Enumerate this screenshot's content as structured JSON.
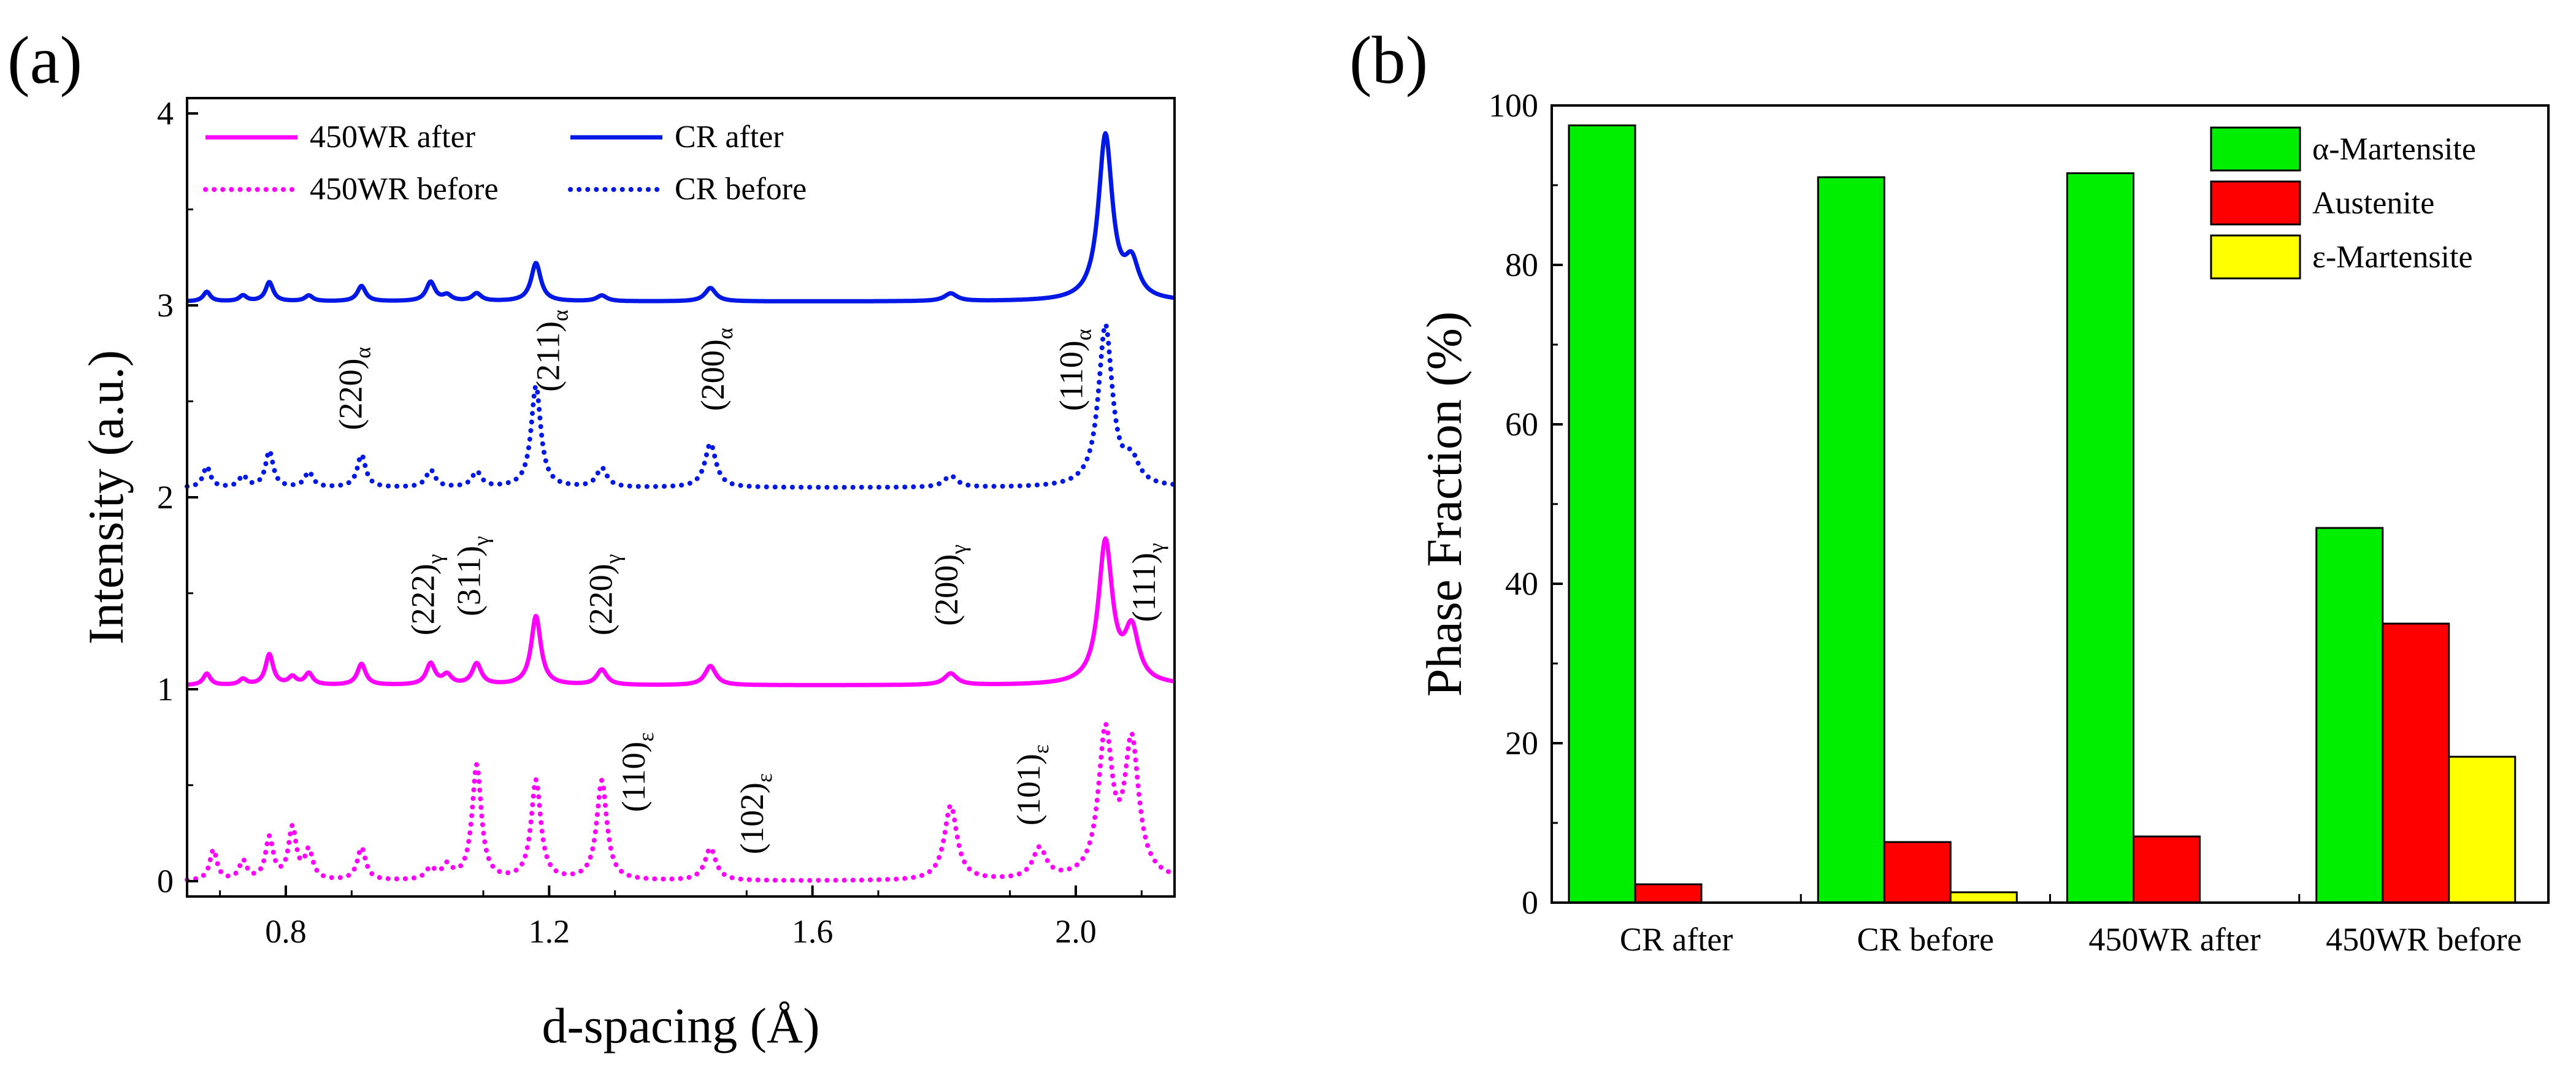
{
  "figure": {
    "panel_a_label": "(a)",
    "panel_b_label": "(b)"
  },
  "chart_data": [
    {
      "type": "line",
      "panel": "(a)",
      "title": "",
      "xlabel": "d-spacing (Å)",
      "ylabel": "Intensity (a.u.)",
      "xlim": [
        0.65,
        2.15
      ],
      "ylim": [
        -0.08,
        4.08
      ],
      "xticks": [
        0.8,
        1.2,
        1.6,
        2.0
      ],
      "xtick_labels": [
        "0.8",
        "1.2",
        "1.6",
        "2.0"
      ],
      "yticks": [
        0,
        1,
        2,
        3,
        4
      ],
      "ytick_labels": [
        "0",
        "1",
        "2",
        "3",
        "4"
      ],
      "grid": false,
      "legend": "top",
      "series": [
        {
          "name": "450WR after",
          "color": "#ff00ff",
          "style": "solid",
          "baseline": 1.02,
          "peaks": [
            [
              0.68,
              0.06
            ],
            [
              0.735,
              0.03
            ],
            [
              0.775,
              0.16
            ],
            [
              0.81,
              0.04
            ],
            [
              0.835,
              0.06
            ],
            [
              0.915,
              0.11
            ],
            [
              1.02,
              0.11
            ],
            [
              1.045,
              0.05
            ],
            [
              1.09,
              0.11
            ],
            [
              1.18,
              0.36
            ],
            [
              1.28,
              0.08
            ],
            [
              1.445,
              0.1
            ],
            [
              1.81,
              0.06
            ],
            [
              2.045,
              0.74
            ],
            [
              2.085,
              0.27
            ]
          ]
        },
        {
          "name": "CR after",
          "color": "#0018e6",
          "style": "solid",
          "baseline": 3.02,
          "peaks": [
            [
              0.68,
              0.05
            ],
            [
              0.735,
              0.03
            ],
            [
              0.775,
              0.1
            ],
            [
              0.835,
              0.03
            ],
            [
              0.915,
              0.08
            ],
            [
              1.02,
              0.1
            ],
            [
              1.045,
              0.03
            ],
            [
              1.09,
              0.04
            ],
            [
              1.18,
              0.2
            ],
            [
              1.28,
              0.03
            ],
            [
              1.445,
              0.07
            ],
            [
              1.81,
              0.04
            ],
            [
              2.045,
              0.86
            ],
            [
              2.085,
              0.18
            ]
          ]
        },
        {
          "name": "450WR before",
          "color": "#ff00ff",
          "style": "dotted",
          "baseline": 0.0,
          "peaks": [
            [
              0.69,
              0.16
            ],
            [
              0.735,
              0.1
            ],
            [
              0.775,
              0.22
            ],
            [
              0.81,
              0.27
            ],
            [
              0.835,
              0.15
            ],
            [
              0.915,
              0.17
            ],
            [
              1.02,
              0.06
            ],
            [
              1.045,
              0.07
            ],
            [
              1.09,
              0.6
            ],
            [
              1.18,
              0.52
            ],
            [
              1.28,
              0.52
            ],
            [
              1.445,
              0.17
            ],
            [
              1.81,
              0.39
            ],
            [
              1.945,
              0.16
            ],
            [
              2.045,
              0.75
            ],
            [
              2.085,
              0.7
            ]
          ]
        },
        {
          "name": "CR before",
          "color": "#0018e6",
          "style": "dotted",
          "baseline": 2.05,
          "peaks": [
            [
              0.68,
              0.11
            ],
            [
              0.735,
              0.06
            ],
            [
              0.775,
              0.19
            ],
            [
              0.835,
              0.08
            ],
            [
              0.915,
              0.17
            ],
            [
              1.02,
              0.09
            ],
            [
              1.09,
              0.08
            ],
            [
              1.18,
              0.53
            ],
            [
              1.28,
              0.1
            ],
            [
              1.445,
              0.23
            ],
            [
              1.81,
              0.06
            ],
            [
              2.045,
              0.84
            ],
            [
              2.085,
              0.12
            ]
          ]
        }
      ],
      "legend_order": [
        "450WR after",
        "CR after",
        "450WR before",
        "CR before"
      ],
      "annotations": [
        {
          "main": "(220)",
          "sub": "α",
          "x": 0.915,
          "y": 2.35
        },
        {
          "main": "(211)",
          "sub": "α",
          "x": 1.215,
          "y": 2.55
        },
        {
          "main": "(200)",
          "sub": "α",
          "x": 1.465,
          "y": 2.45
        },
        {
          "main": "(110)",
          "sub": "α",
          "x": 2.01,
          "y": 2.45
        },
        {
          "main": "(222)",
          "sub": "γ",
          "x": 1.025,
          "y": 1.28
        },
        {
          "main": "(311)",
          "sub": "γ",
          "x": 1.095,
          "y": 1.38
        },
        {
          "main": "(220)",
          "sub": "γ",
          "x": 1.295,
          "y": 1.28
        },
        {
          "main": "(200)",
          "sub": "γ",
          "x": 1.82,
          "y": 1.33
        },
        {
          "main": "(111)",
          "sub": "γ",
          "x": 2.12,
          "y": 1.35
        },
        {
          "main": "(110)",
          "sub": "ε",
          "x": 1.345,
          "y": 0.36
        },
        {
          "main": "(102)",
          "sub": "ε",
          "x": 1.525,
          "y": 0.14
        },
        {
          "main": "(101)",
          "sub": "ε",
          "x": 1.945,
          "y": 0.29
        }
      ]
    },
    {
      "type": "bar",
      "panel": "(b)",
      "title": "",
      "xlabel": "",
      "ylabel": "Phase Fraction (%)",
      "ylim": [
        0,
        100
      ],
      "yticks": [
        0,
        20,
        40,
        60,
        80,
        100
      ],
      "ytick_labels": [
        "0",
        "20",
        "40",
        "60",
        "80",
        "100"
      ],
      "grid": false,
      "legend": "top-right",
      "categories": [
        "CR after",
        "CR before",
        "450WR after",
        "450WR before"
      ],
      "series": [
        {
          "name": "α-Martensite",
          "color": "#00ee00",
          "values": [
            97.5,
            91,
            91.5,
            47
          ]
        },
        {
          "name": "Austenite",
          "color": "#ff0000",
          "values": [
            2.3,
            7.6,
            8.3,
            35
          ]
        },
        {
          "name": "ε-Martensite",
          "color": "#ffff00",
          "values": [
            0,
            1.3,
            0,
            18.3
          ]
        }
      ]
    }
  ]
}
